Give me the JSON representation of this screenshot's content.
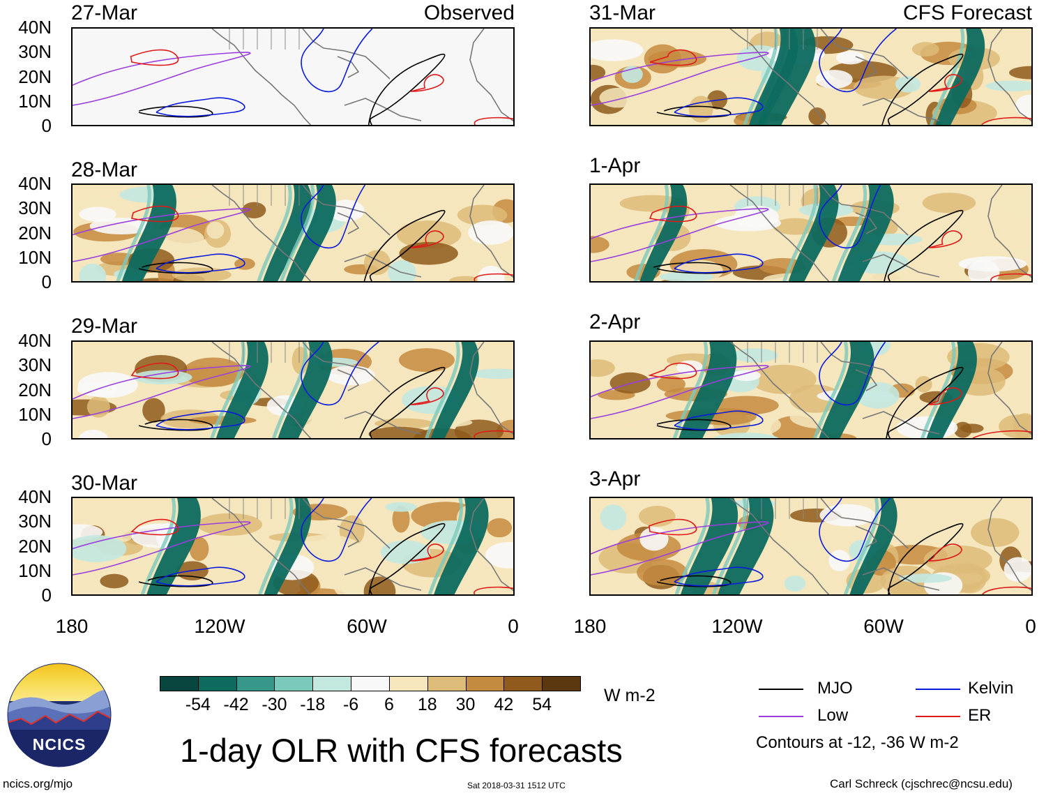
{
  "left_column_title": "Observed",
  "right_column_title": "CFS Forecast",
  "panels_left": [
    {
      "date": "27-Mar",
      "shaded": false
    },
    {
      "date": "28-Mar",
      "shaded": true
    },
    {
      "date": "29-Mar",
      "shaded": true
    },
    {
      "date": "30-Mar",
      "shaded": true
    }
  ],
  "panels_right": [
    {
      "date": "31-Mar",
      "shaded": true
    },
    {
      "date": "1-Apr",
      "shaded": true
    },
    {
      "date": "2-Apr",
      "shaded": true
    },
    {
      "date": "3-Apr",
      "shaded": true
    }
  ],
  "lat_labels": [
    "40N",
    "30N",
    "20N",
    "10N",
    "0"
  ],
  "lon_labels": [
    "180",
    "120W",
    "60W",
    "0"
  ],
  "colorbar": {
    "colors": [
      "#08463f",
      "#0d6a5f",
      "#37978b",
      "#7ac9bb",
      "#c3e8e0",
      "#f8f8f8",
      "#f5e6bd",
      "#ddbb79",
      "#c48a3f",
      "#8f5a1c",
      "#5c3810"
    ],
    "ticks": [
      "-54",
      "-42",
      "-30",
      "-18",
      "-6",
      "6",
      "18",
      "30",
      "42",
      "54"
    ],
    "units": "W m-2"
  },
  "legend": {
    "items": [
      {
        "label": "MJO",
        "color": "#000000"
      },
      {
        "label": "Kelvin",
        "color": "#0a1adc"
      },
      {
        "label": "Low",
        "color": "#9a3ede"
      },
      {
        "label": "ER",
        "color": "#e01818"
      }
    ],
    "contours_note": "Contours at -12, -36 W m-2"
  },
  "logo": {
    "text": "NCICS"
  },
  "main_title": "1-day OLR with CFS forecasts",
  "footer": {
    "url": "ncics.org/mjo",
    "timestamp": "Sat 2018-03-31 1512 UTC",
    "author": "Carl Schreck (cjschrec@ncsu.edu)"
  }
}
